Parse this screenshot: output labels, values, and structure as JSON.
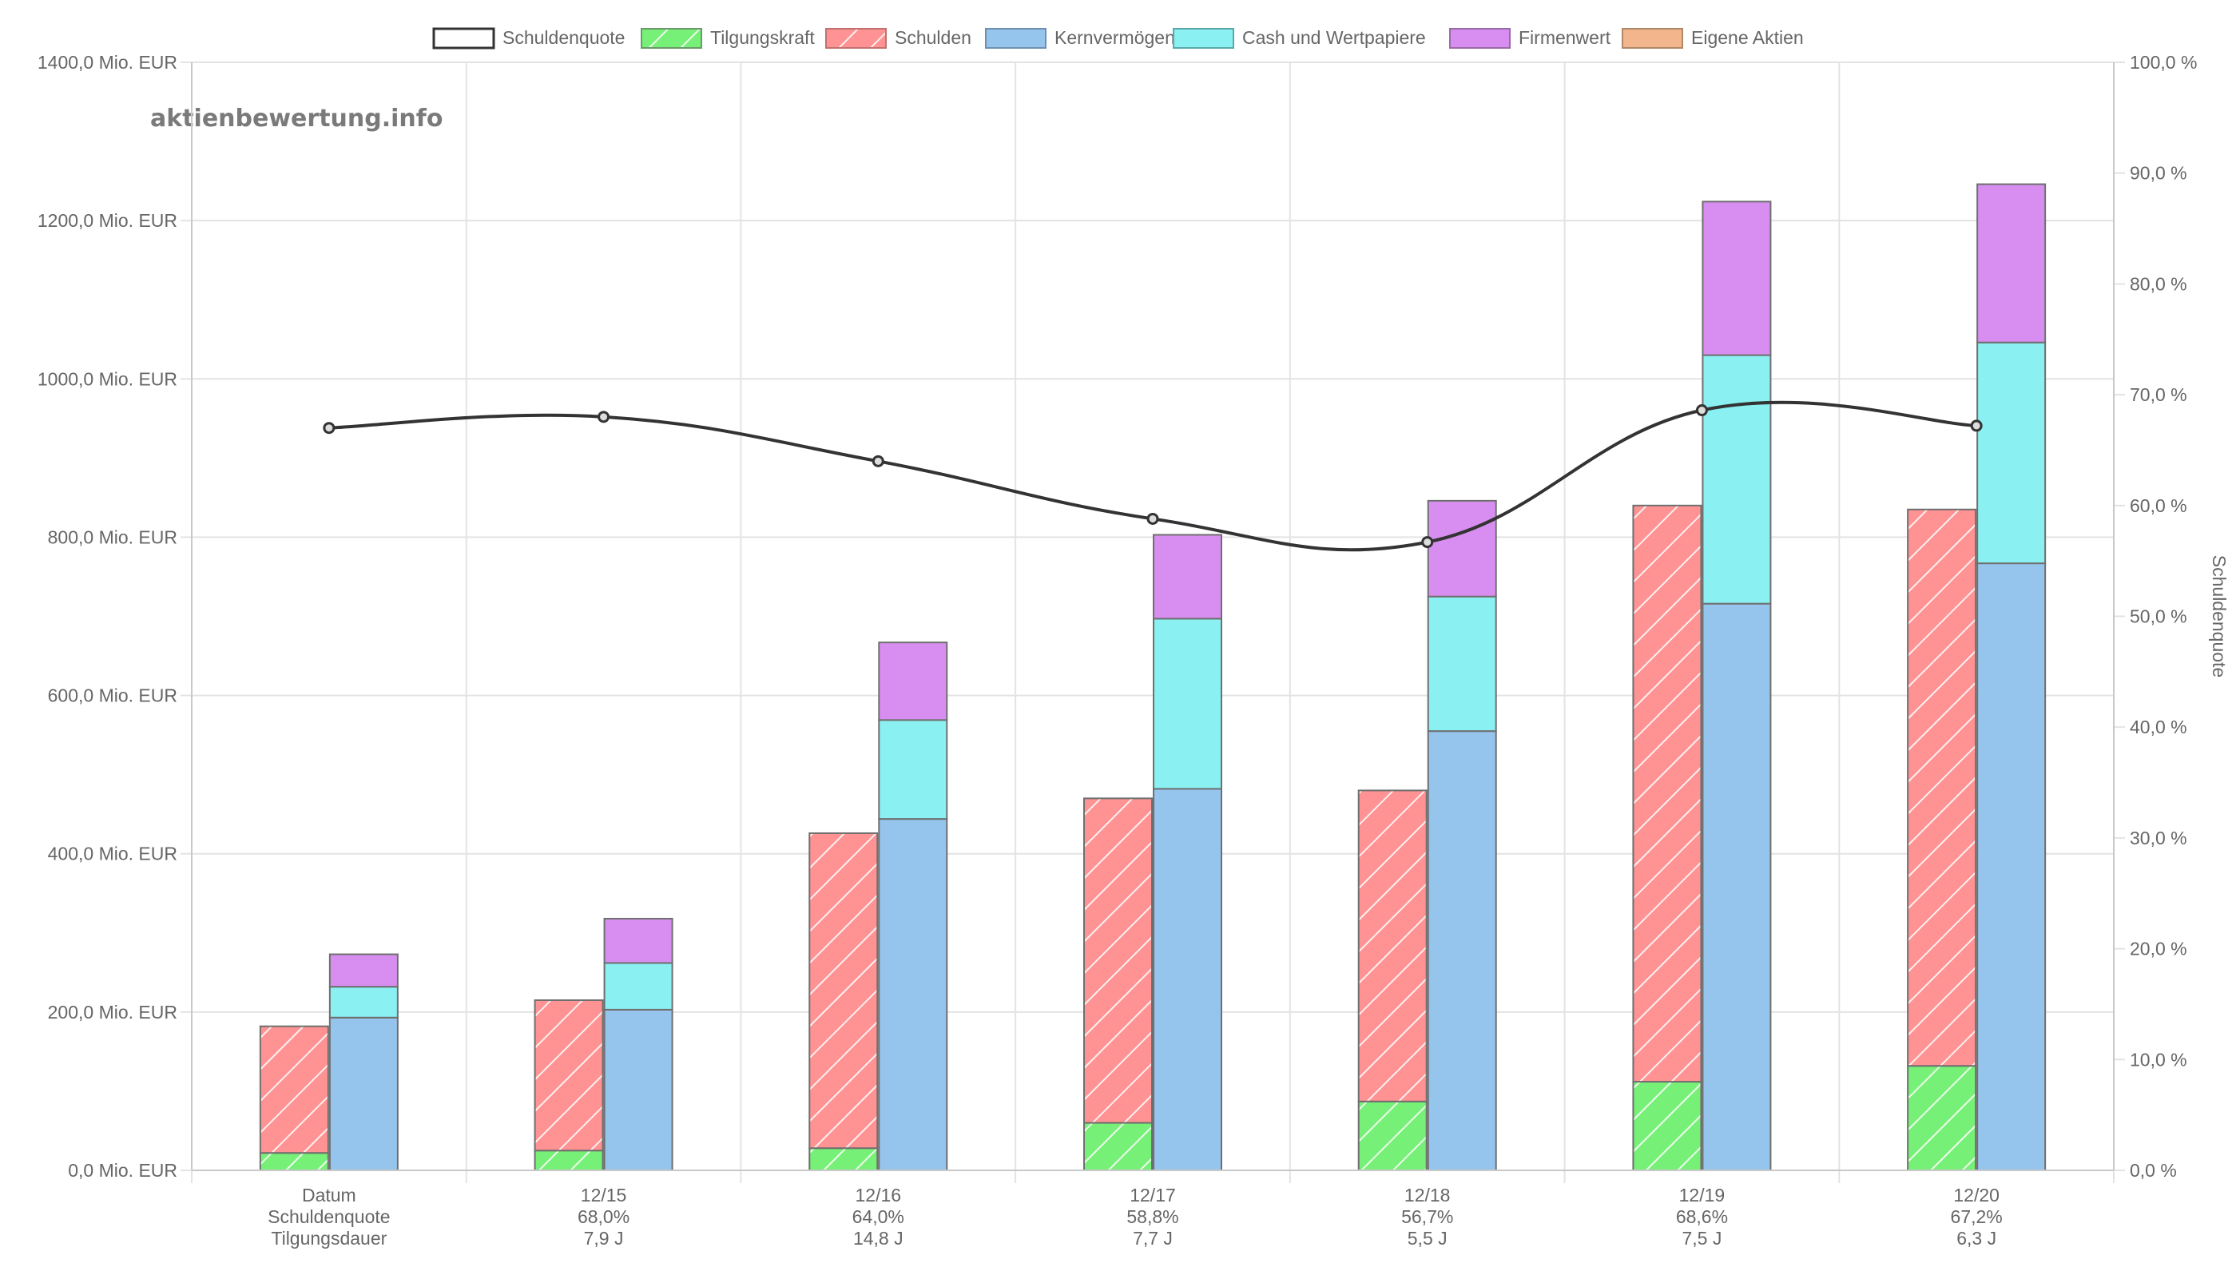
{
  "watermark": "aktienbewertung.info",
  "colors": {
    "schuldenquote": "#333333",
    "tilgungskraft": "#77f077",
    "schulden": "#ff9292",
    "kernvermoegen": "#95c4ec",
    "cash": "#8af0f2",
    "firmenwert": "#d88ef0",
    "eigene_aktien": "#f3b68c",
    "grid": "#e3e3e3",
    "bar_border": "#6f6f6f",
    "text": "#666666"
  },
  "chart_data": {
    "type": "bar",
    "legend_position": "top-center",
    "grid": true,
    "legend": [
      "Schuldenquote",
      "Tilgungskraft",
      "Schulden",
      "Kernvermögen",
      "Cash und Wertpapiere",
      "Firmenwert",
      "Eigene Aktien"
    ],
    "categories": [
      "Datum",
      "12/15",
      "12/16",
      "12/17",
      "12/18",
      "12/19",
      "12/20"
    ],
    "category_lines": [
      [
        "Datum",
        "Schuldenquote",
        "Tilgungsdauer"
      ],
      [
        "12/15",
        "68,0%",
        "7,9 J"
      ],
      [
        "12/16",
        "64,0%",
        "14,8 J"
      ],
      [
        "12/17",
        "58,8%",
        "7,7 J"
      ],
      [
        "12/18",
        "56,7%",
        "5,5 J"
      ],
      [
        "12/19",
        "68,6%",
        "7,5 J"
      ],
      [
        "12/20",
        "67,2%",
        "6,3 J"
      ]
    ],
    "y_left": {
      "min": 0,
      "max": 1400,
      "step": 200,
      "tick_labels": [
        "0,0 Mio. EUR",
        "200,0 Mio. EUR",
        "400,0 Mio. EUR",
        "600,0 Mio. EUR",
        "800,0 Mio. EUR",
        "1000,0 Mio. EUR",
        "1200,0 Mio. EUR",
        "1400,0 Mio. EUR"
      ]
    },
    "y_right": {
      "label": "Schuldenquote",
      "min": 0,
      "max": 100,
      "step": 10,
      "tick_labels": [
        "0,0 %",
        "10,0 %",
        "20,0 %",
        "30,0 %",
        "40,0 %",
        "50,0 %",
        "60,0 %",
        "70,0 %",
        "80,0 %",
        "90,0 %",
        "100,0 %"
      ]
    },
    "series": [
      {
        "name": "Schuldenquote",
        "type": "line",
        "axis": "right",
        "values": [
          67.0,
          68.0,
          64.0,
          58.8,
          56.7,
          68.6,
          67.2
        ]
      },
      {
        "name": "Tilgungskraft",
        "type": "bar",
        "stack": "debt",
        "values": [
          22,
          25,
          28,
          60,
          87,
          112,
          132
        ]
      },
      {
        "name": "Schulden",
        "type": "bar",
        "stack": "debt",
        "values": [
          160,
          190,
          398,
          410,
          393,
          728,
          703
        ]
      },
      {
        "name": "Kernvermögen",
        "type": "bar",
        "stack": "assets",
        "values": [
          193,
          203,
          444,
          482,
          555,
          716,
          767
        ]
      },
      {
        "name": "Cash und Wertpapiere",
        "type": "bar",
        "stack": "assets",
        "values": [
          39,
          59,
          125,
          215,
          170,
          314,
          279
        ]
      },
      {
        "name": "Firmenwert",
        "type": "bar",
        "stack": "assets",
        "values": [
          41,
          56,
          98,
          106,
          121,
          194,
          200
        ]
      },
      {
        "name": "Eigene Aktien",
        "type": "bar",
        "stack": "assets",
        "values": [
          0,
          0,
          0,
          0,
          0,
          0,
          0
        ]
      }
    ]
  }
}
